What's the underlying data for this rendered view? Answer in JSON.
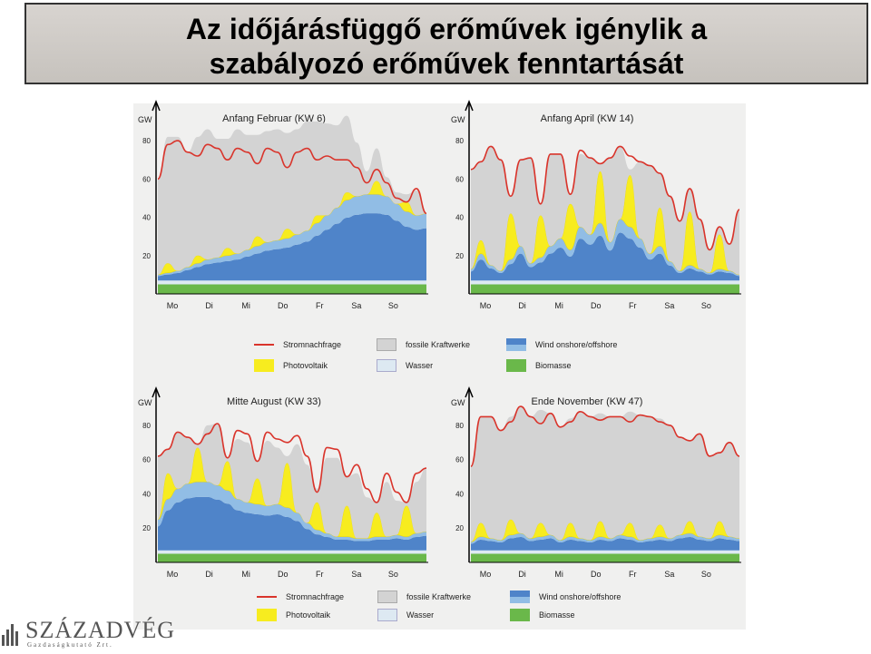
{
  "title": {
    "line1": "Az időjárásfüggő erőművek igénylik a",
    "line2": "szabályozó erőművek fenntartását"
  },
  "colors": {
    "demand": "#d9342b",
    "fossil": "#d3d3d3",
    "solar": "#f7ec1f",
    "water": "#dde9f2",
    "wind_dark": "#4f84c9",
    "wind_light": "#91bde5",
    "biomass": "#6ab84a"
  },
  "legend": {
    "demand": "Stromnachfrage",
    "fossil": "fossile Kraftwerke",
    "wind": "Wind onshore/offshore",
    "solar": "Photovoltaik",
    "water": "Wasser",
    "biomass": "Biomasse"
  },
  "logo": {
    "name": "SZÁZADVÉG",
    "sub": "Gazdaságkutató Zrt."
  },
  "chart_data": [
    {
      "type": "area",
      "title": "Anfang Februar (KW 6)",
      "ylabel": "GW",
      "ylim": [
        0,
        90
      ],
      "yticks": [
        20,
        40,
        60,
        80
      ],
      "days": [
        "Mo",
        "Di",
        "Mi",
        "Do",
        "Fr",
        "Sa",
        "So"
      ],
      "series": [
        {
          "name": "Biomasse",
          "values": [
            5,
            5,
            5,
            5,
            5,
            5,
            5,
            5,
            5,
            5,
            5,
            5,
            5,
            5,
            5,
            5,
            5,
            5,
            5,
            5,
            5,
            5,
            5,
            5,
            5,
            5,
            5,
            5
          ]
        },
        {
          "name": "Wasser",
          "values": [
            2,
            2,
            2,
            2,
            2,
            2,
            2,
            2,
            2,
            2,
            2,
            2,
            2,
            2,
            2,
            2,
            2,
            2,
            2,
            2,
            2,
            2,
            2,
            2,
            2,
            2,
            2,
            2
          ]
        },
        {
          "name": "Wind onshore/offshore",
          "values": [
            3,
            4,
            5,
            7,
            9,
            11,
            12,
            13,
            14,
            16,
            18,
            20,
            21,
            22,
            24,
            26,
            30,
            34,
            38,
            42,
            44,
            45,
            45,
            44,
            40,
            36,
            34,
            35
          ]
        },
        {
          "name": "Photovoltaik",
          "values": [
            0,
            5,
            0,
            0,
            4,
            0,
            0,
            4,
            0,
            0,
            5,
            0,
            0,
            5,
            0,
            0,
            4,
            0,
            0,
            4,
            0,
            0,
            7,
            0,
            0,
            5,
            0,
            0
          ]
        },
        {
          "name": "fossile Kraftwerke",
          "values": [
            50,
            66,
            70,
            60,
            62,
            68,
            62,
            57,
            65,
            60,
            53,
            58,
            58,
            50,
            55,
            57,
            49,
            48,
            43,
            40,
            28,
            12,
            17,
            10,
            6,
            4,
            13,
            0
          ]
        },
        {
          "name": "Stromnachfrage",
          "values": [
            60,
            78,
            80,
            74,
            72,
            78,
            76,
            70,
            76,
            74,
            68,
            76,
            74,
            66,
            74,
            76,
            70,
            72,
            70,
            70,
            66,
            58,
            65,
            58,
            50,
            48,
            55,
            42
          ]
        }
      ]
    },
    {
      "type": "area",
      "title": "Anfang April (KW 14)",
      "ylabel": "GW",
      "ylim": [
        0,
        90
      ],
      "yticks": [
        20,
        40,
        60,
        80
      ],
      "days": [
        "Mo",
        "Di",
        "Mi",
        "Do",
        "Fr",
        "Sa",
        "So"
      ],
      "series": [
        {
          "name": "Biomasse",
          "values": [
            5,
            5,
            5,
            5,
            5,
            5,
            5,
            5,
            5,
            5,
            5,
            5,
            5,
            5,
            5,
            5,
            5,
            5,
            5,
            5,
            5,
            5,
            5,
            5,
            5,
            5,
            5,
            5
          ]
        },
        {
          "name": "Wasser",
          "values": [
            2,
            2,
            2,
            2,
            2,
            2,
            2,
            2,
            2,
            2,
            2,
            2,
            2,
            2,
            2,
            2,
            2,
            2,
            2,
            2,
            2,
            2,
            2,
            2,
            2,
            2,
            2,
            2
          ]
        },
        {
          "name": "Wind onshore/offshore",
          "values": [
            6,
            14,
            8,
            5,
            11,
            18,
            9,
            12,
            18,
            22,
            16,
            28,
            24,
            30,
            20,
            32,
            28,
            22,
            14,
            18,
            10,
            5,
            8,
            6,
            4,
            6,
            5,
            3
          ]
        },
        {
          "name": "Photovoltaik",
          "values": [
            0,
            7,
            0,
            0,
            24,
            0,
            0,
            22,
            0,
            0,
            24,
            0,
            0,
            27,
            0,
            0,
            27,
            0,
            0,
            20,
            0,
            0,
            28,
            0,
            0,
            18,
            0,
            0
          ]
        },
        {
          "name": "fossile Kraftwerke",
          "values": [
            52,
            41,
            62,
            58,
            9,
            45,
            55,
            6,
            48,
            44,
            5,
            38,
            40,
            4,
            44,
            38,
            3,
            40,
            46,
            18,
            34,
            26,
            12,
            26,
            12,
            4,
            14,
            34
          ]
        },
        {
          "name": "Stromnachfrage",
          "values": [
            65,
            69,
            77,
            70,
            51,
            70,
            71,
            47,
            73,
            73,
            52,
            75,
            71,
            68,
            71,
            77,
            72,
            69,
            67,
            63,
            51,
            38,
            55,
            39,
            23,
            35,
            26,
            44
          ]
        }
      ]
    },
    {
      "type": "area",
      "title": "Mitte August (KW 33)",
      "ylabel": "GW",
      "ylim": [
        0,
        90
      ],
      "yticks": [
        20,
        40,
        60,
        80
      ],
      "days": [
        "Mo",
        "Di",
        "Mi",
        "Do",
        "Fr",
        "Sa",
        "So"
      ],
      "series": [
        {
          "name": "Biomasse",
          "values": [
            5,
            5,
            5,
            5,
            5,
            5,
            5,
            5,
            5,
            5,
            5,
            5,
            5,
            5,
            5,
            5,
            5,
            5,
            5,
            5,
            5,
            5,
            5,
            5,
            5,
            5,
            5,
            5
          ]
        },
        {
          "name": "Wasser",
          "values": [
            2,
            2,
            2,
            2,
            2,
            2,
            2,
            2,
            2,
            2,
            2,
            2,
            2,
            2,
            2,
            2,
            2,
            2,
            2,
            2,
            2,
            2,
            2,
            2,
            2,
            2,
            2,
            2
          ]
        },
        {
          "name": "Wind onshore/offshore",
          "values": [
            18,
            30,
            36,
            39,
            40,
            40,
            38,
            35,
            30,
            28,
            27,
            26,
            27,
            25,
            22,
            16,
            12,
            10,
            8,
            8,
            7,
            7,
            8,
            8,
            9,
            8,
            10,
            11
          ]
        },
        {
          "name": "Photovoltaik",
          "values": [
            0,
            15,
            0,
            0,
            20,
            0,
            0,
            17,
            0,
            0,
            15,
            0,
            0,
            26,
            0,
            0,
            16,
            0,
            0,
            18,
            0,
            0,
            14,
            0,
            0,
            18,
            0,
            0
          ]
        },
        {
          "name": "fossile Kraftwerke",
          "values": [
            37,
            14,
            33,
            27,
            2,
            33,
            36,
            2,
            35,
            35,
            10,
            38,
            33,
            4,
            40,
            34,
            8,
            44,
            46,
            17,
            38,
            24,
            6,
            32,
            20,
            2,
            30,
            37
          ]
        },
        {
          "name": "Stromnachfrage",
          "values": [
            62,
            66,
            76,
            73,
            69,
            75,
            81,
            61,
            77,
            75,
            59,
            76,
            72,
            70,
            74,
            62,
            41,
            67,
            66,
            50,
            57,
            43,
            35,
            52,
            41,
            35,
            52,
            55
          ]
        }
      ]
    },
    {
      "type": "area",
      "title": "Ende November (KW 47)",
      "ylabel": "GW",
      "ylim": [
        0,
        90
      ],
      "yticks": [
        20,
        40,
        60,
        80
      ],
      "days": [
        "Mo",
        "Di",
        "Mi",
        "Do",
        "Fr",
        "Sa",
        "So"
      ],
      "series": [
        {
          "name": "Biomasse",
          "values": [
            5,
            5,
            5,
            5,
            5,
            5,
            5,
            5,
            5,
            5,
            5,
            5,
            5,
            5,
            5,
            5,
            5,
            5,
            5,
            5,
            5,
            5,
            5,
            5,
            5,
            5,
            5,
            5
          ]
        },
        {
          "name": "Wasser",
          "values": [
            2,
            2,
            2,
            2,
            2,
            2,
            2,
            2,
            2,
            2,
            2,
            2,
            2,
            2,
            2,
            2,
            2,
            2,
            2,
            2,
            2,
            2,
            2,
            2,
            2,
            2,
            2,
            2
          ]
        },
        {
          "name": "Wind onshore/offshore",
          "values": [
            5,
            8,
            7,
            6,
            9,
            10,
            7,
            8,
            9,
            6,
            8,
            7,
            6,
            8,
            7,
            9,
            8,
            6,
            7,
            8,
            7,
            9,
            10,
            8,
            7,
            9,
            8,
            7
          ]
        },
        {
          "name": "Photovoltaik",
          "values": [
            0,
            8,
            0,
            0,
            9,
            0,
            0,
            8,
            0,
            0,
            8,
            0,
            0,
            9,
            0,
            0,
            8,
            0,
            0,
            7,
            0,
            0,
            7,
            0,
            0,
            8,
            0,
            0
          ]
        },
        {
          "name": "fossile Kraftwerke",
          "values": [
            44,
            62,
            71,
            64,
            60,
            74,
            71,
            66,
            71,
            66,
            61,
            74,
            72,
            63,
            71,
            69,
            65,
            73,
            71,
            62,
            66,
            57,
            47,
            60,
            48,
            40,
            55,
            48
          ]
        },
        {
          "name": "Stromnachfrage",
          "values": [
            56,
            85,
            85,
            77,
            82,
            91,
            85,
            81,
            87,
            79,
            82,
            88,
            85,
            83,
            85,
            85,
            82,
            86,
            85,
            82,
            80,
            73,
            71,
            75,
            62,
            64,
            70,
            62
          ]
        }
      ]
    }
  ]
}
